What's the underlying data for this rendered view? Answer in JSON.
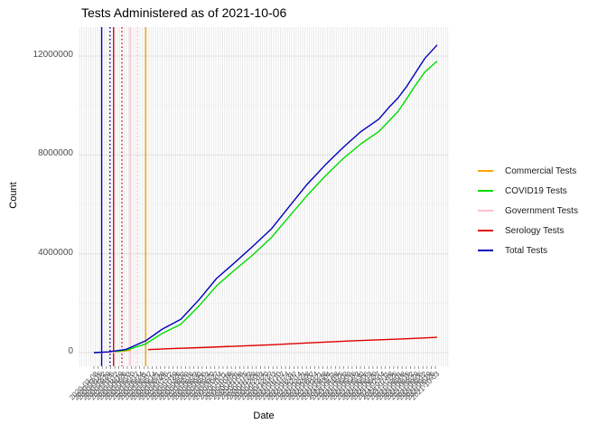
{
  "chart_data": {
    "type": "line",
    "title": "Tests Administered as of 2021-10-06",
    "xlabel": "Date",
    "ylabel": "Count",
    "legend_position": "right",
    "grid": true,
    "x_domain": [
      "2020-03-08",
      "2021-10-06"
    ],
    "ylim": [
      0,
      12800000
    ],
    "y_ticks": [
      0,
      4000000,
      8000000,
      12000000
    ],
    "y_minor_ticks": [
      2000000,
      6000000,
      10000000
    ],
    "series": [
      {
        "name": "Commercial Tests",
        "color": "#FFA500",
        "points": [
          [
            "2020-04-10",
            30000
          ],
          [
            "2020-04-25",
            60000
          ],
          [
            "2020-05-10",
            100000
          ]
        ]
      },
      {
        "name": "COVID19 Tests",
        "color": "#00DB00",
        "points": [
          [
            "2020-03-08",
            0
          ],
          [
            "2020-04-01",
            20000
          ],
          [
            "2020-05-01",
            100000
          ],
          [
            "2020-06-03",
            350000
          ],
          [
            "2020-07-01",
            780000
          ],
          [
            "2020-08-01",
            1150000
          ],
          [
            "2020-09-01",
            1900000
          ],
          [
            "2020-09-30",
            2700000
          ],
          [
            "2020-10-31",
            3350000
          ],
          [
            "2020-11-30",
            3950000
          ],
          [
            "2020-12-31",
            4650000
          ],
          [
            "2021-01-30",
            5500000
          ],
          [
            "2021-03-01",
            6350000
          ],
          [
            "2021-04-01",
            7150000
          ],
          [
            "2021-05-01",
            7850000
          ],
          [
            "2021-05-31",
            8450000
          ],
          [
            "2021-06-30",
            8950000
          ],
          [
            "2021-07-16",
            9350000
          ],
          [
            "2021-08-01",
            9750000
          ],
          [
            "2021-08-15",
            10250000
          ],
          [
            "2021-08-30",
            10800000
          ],
          [
            "2021-09-15",
            11350000
          ],
          [
            "2021-10-06",
            11800000
          ]
        ]
      },
      {
        "name": "Government Tests",
        "color": "#FFC0CB",
        "points": [
          [
            "2020-03-10",
            4000
          ],
          [
            "2020-03-28",
            6000
          ],
          [
            "2020-04-13",
            9000
          ]
        ]
      },
      {
        "name": "Serology Tests",
        "color": "#DE0000",
        "points": [
          [
            "2020-06-07",
            120000
          ],
          [
            "2020-07-15",
            160000
          ],
          [
            "2020-09-01",
            200000
          ],
          [
            "2020-11-01",
            260000
          ],
          [
            "2021-01-01",
            320000
          ],
          [
            "2021-03-01",
            390000
          ],
          [
            "2021-05-01",
            460000
          ],
          [
            "2021-07-01",
            520000
          ],
          [
            "2021-08-15",
            560000
          ],
          [
            "2021-10-06",
            620000
          ]
        ]
      },
      {
        "name": "Total Tests",
        "color": "#0000BB",
        "points": [
          [
            "2020-03-08",
            0
          ],
          [
            "2020-04-01",
            30000
          ],
          [
            "2020-05-01",
            130000
          ],
          [
            "2020-06-03",
            480000
          ],
          [
            "2020-07-01",
            950000
          ],
          [
            "2020-08-01",
            1350000
          ],
          [
            "2020-09-01",
            2150000
          ],
          [
            "2020-09-30",
            3000000
          ],
          [
            "2020-10-31",
            3650000
          ],
          [
            "2020-11-30",
            4300000
          ],
          [
            "2020-12-31",
            5000000
          ],
          [
            "2021-01-30",
            5900000
          ],
          [
            "2021-03-01",
            6800000
          ],
          [
            "2021-04-01",
            7600000
          ],
          [
            "2021-05-01",
            8300000
          ],
          [
            "2021-05-31",
            8950000
          ],
          [
            "2021-06-30",
            9450000
          ],
          [
            "2021-07-16",
            9900000
          ],
          [
            "2021-08-01",
            10300000
          ],
          [
            "2021-08-15",
            10750000
          ],
          [
            "2021-08-30",
            11300000
          ],
          [
            "2021-09-15",
            11900000
          ],
          [
            "2021-10-06",
            12450000
          ]
        ]
      }
    ],
    "vlines": [
      {
        "color": "#0000BB",
        "style": "solid",
        "date": "2020-03-21"
      },
      {
        "color": "#0000BB",
        "style": "dotted",
        "date": "2020-04-04"
      },
      {
        "color": "#DE0000",
        "style": "solid",
        "date": "2020-04-10"
      },
      {
        "color": "#DE0000",
        "style": "dotted",
        "date": "2020-04-24"
      },
      {
        "color": "#FFC0CB",
        "style": "solid",
        "date": "2020-05-08"
      },
      {
        "color": "#FFC0CB",
        "style": "dotted",
        "date": "2020-05-20"
      },
      {
        "color": "#FFA500",
        "style": "solid",
        "date": "2020-06-03"
      }
    ],
    "x_tick_labels": [
      "2020-03-08",
      "2020-03-15",
      "2020-03-22",
      "2020-03-29",
      "2020-04-05",
      "2020-04-12",
      "2020-04-19",
      "2020-04-26",
      "2020-05-03",
      "2020-05-10",
      "2020-05-17",
      "2020-05-24",
      "2020-05-31",
      "2020-06-07",
      "2020-06-14",
      "2020-06-21",
      "2020-06-28",
      "2020-07-05",
      "2020-07-12",
      "2020-07-19",
      "2020-07-26",
      "2020-08-02",
      "2020-08-09",
      "2020-08-16",
      "2020-08-23",
      "2020-08-30",
      "2020-09-06",
      "2020-09-13",
      "2020-09-20",
      "2020-09-27",
      "2020-10-04",
      "2020-10-11",
      "2020-10-18",
      "2020-10-25",
      "2020-11-01",
      "2020-11-08",
      "2020-11-15",
      "2020-11-22",
      "2020-11-29",
      "2020-12-06",
      "2020-12-13",
      "2020-12-20",
      "2020-12-27",
      "2021-01-03",
      "2021-01-10",
      "2021-01-17",
      "2021-01-24",
      "2021-01-31",
      "2021-02-07",
      "2021-02-14",
      "2021-02-21",
      "2021-02-28",
      "2021-03-07",
      "2021-03-14",
      "2021-03-21",
      "2021-03-28",
      "2021-04-04",
      "2021-04-11",
      "2021-04-18",
      "2021-04-25",
      "2021-05-02",
      "2021-05-09",
      "2021-05-16",
      "2021-05-23",
      "2021-05-30",
      "2021-06-06",
      "2021-06-13",
      "2021-06-20",
      "2021-06-27",
      "2021-07-04",
      "2021-07-11",
      "2021-07-18",
      "2021-07-25",
      "2021-08-01",
      "2021-08-08",
      "2021-08-15",
      "2021-08-22",
      "2021-08-29",
      "2021-09-05",
      "2021-09-12",
      "2021-09-19",
      "2021-09-26",
      "2021-10-03"
    ],
    "grid_color_major": "#E2E2E2",
    "grid_color_minor": "#EFEFEF"
  }
}
